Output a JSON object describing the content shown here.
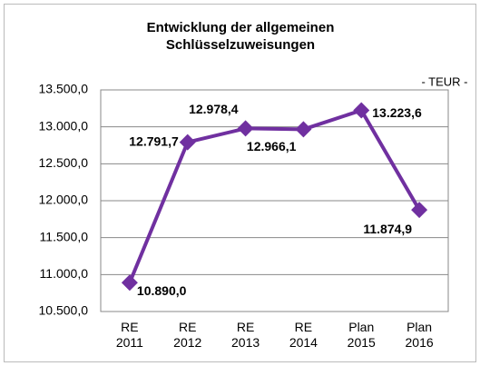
{
  "chart_data": {
    "type": "line",
    "title": "Entwicklung der allgemeinen Schlüsselzuweisungen",
    "annotation": "- TEUR -",
    "categories": [
      "RE 2011",
      "RE 2012",
      "RE 2013",
      "RE 2014",
      "Plan 2015",
      "Plan 2016"
    ],
    "series": [
      {
        "color": "#7030a0",
        "values": [
          10890.0,
          12791.7,
          12978.4,
          12966.1,
          13223.6,
          11874.9
        ],
        "value_labels": [
          "10.890,0",
          "12.791,7",
          "12.978,4",
          "12.966,1",
          "13.223,6",
          "11.874,9"
        ]
      }
    ],
    "ylim": [
      10500,
      13500
    ],
    "yticks": [
      {
        "value": 10500,
        "label": "10.500,0"
      },
      {
        "value": 11000,
        "label": "11.000,0"
      },
      {
        "value": 11500,
        "label": "11.500,0"
      },
      {
        "value": 12000,
        "label": "12.000,0"
      },
      {
        "value": 12500,
        "label": "12.500,0"
      },
      {
        "value": 13000,
        "label": "13.000,0"
      },
      {
        "value": 13500,
        "label": "13.500,0"
      }
    ],
    "grid": true
  }
}
